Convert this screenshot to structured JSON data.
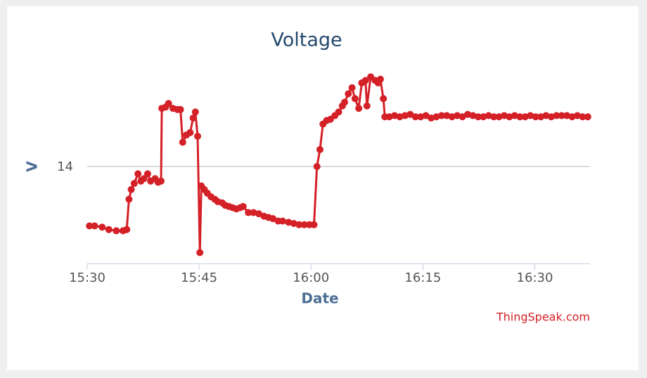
{
  "chart_data": {
    "type": "line",
    "title": "Voltage",
    "x_label": "Date",
    "y_label": "V",
    "credits": "ThingSpeak.com",
    "color": "#d42027",
    "grid": true,
    "xlim": [
      930,
      997.4
    ],
    "xticks": [
      {
        "value": 930,
        "label": "15:30"
      },
      {
        "value": 945,
        "label": "15:45"
      },
      {
        "value": 960,
        "label": "16:00"
      },
      {
        "value": 975,
        "label": "16:15"
      },
      {
        "value": 990,
        "label": "16:30"
      }
    ],
    "ylim": [
      13.2,
      14.8
    ],
    "yticks": [
      14
    ],
    "x": [
      930.3,
      931.0,
      932.0,
      932.9,
      933.9,
      934.8,
      935.3,
      935.6,
      935.9,
      936.3,
      936.8,
      937.2,
      937.6,
      938.1,
      938.5,
      939.1,
      939.5,
      939.9,
      940.0,
      940.5,
      940.9,
      941.5,
      942.1,
      942.5,
      942.8,
      943.3,
      943.8,
      944.2,
      944.5,
      944.8,
      945.1,
      945.3,
      945.7,
      946.1,
      946.6,
      947.1,
      947.5,
      948.1,
      948.5,
      949.0,
      949.5,
      950.0,
      950.5,
      950.9,
      951.6,
      952.3,
      953.0,
      953.7,
      954.3,
      954.9,
      955.6,
      956.2,
      957.0,
      957.7,
      958.4,
      959.1,
      959.8,
      960.4,
      960.8,
      961.2,
      961.6,
      962.1,
      962.6,
      963.2,
      963.7,
      964.2,
      964.5,
      965.0,
      965.5,
      965.9,
      966.4,
      966.8,
      967.3,
      967.5,
      968.0,
      968.6,
      969.0,
      969.3,
      969.7,
      969.9,
      970.5,
      971.2,
      971.9,
      972.6,
      973.3,
      974.0,
      974.7,
      975.4,
      976.1,
      976.8,
      977.5,
      978.2,
      978.9,
      979.6,
      980.3,
      981.0,
      981.7,
      982.4,
      983.1,
      983.8,
      984.5,
      985.2,
      985.9,
      986.6,
      987.3,
      988.0,
      988.7,
      989.4,
      990.1,
      990.8,
      991.5,
      992.2,
      992.9,
      993.6,
      994.3,
      995.0,
      995.7,
      996.4,
      997.1
    ],
    "values": [
      13.51,
      13.51,
      13.5,
      13.48,
      13.47,
      13.47,
      13.48,
      13.73,
      13.81,
      13.86,
      13.94,
      13.88,
      13.9,
      13.94,
      13.88,
      13.9,
      13.87,
      13.88,
      14.48,
      14.49,
      14.52,
      14.48,
      14.47,
      14.47,
      14.2,
      14.26,
      14.28,
      14.4,
      14.45,
      14.25,
      13.29,
      13.84,
      13.81,
      13.78,
      13.75,
      13.73,
      13.71,
      13.7,
      13.68,
      13.67,
      13.66,
      13.65,
      13.66,
      13.67,
      13.62,
      13.62,
      13.61,
      13.59,
      13.58,
      13.57,
      13.55,
      13.55,
      13.54,
      13.53,
      13.52,
      13.52,
      13.52,
      13.52,
      14.0,
      14.14,
      14.35,
      14.38,
      14.39,
      14.42,
      14.45,
      14.5,
      14.53,
      14.6,
      14.65,
      14.56,
      14.48,
      14.69,
      14.71,
      14.5,
      14.74,
      14.71,
      14.69,
      14.72,
      14.56,
      14.41,
      14.41,
      14.42,
      14.41,
      14.42,
      14.43,
      14.41,
      14.41,
      14.42,
      14.4,
      14.41,
      14.42,
      14.42,
      14.41,
      14.42,
      14.41,
      14.43,
      14.42,
      14.41,
      14.41,
      14.42,
      14.41,
      14.41,
      14.42,
      14.41,
      14.42,
      14.41,
      14.41,
      14.42,
      14.41,
      14.41,
      14.42,
      14.41,
      14.42,
      14.42,
      14.42,
      14.41,
      14.42,
      14.41,
      14.41
    ]
  }
}
